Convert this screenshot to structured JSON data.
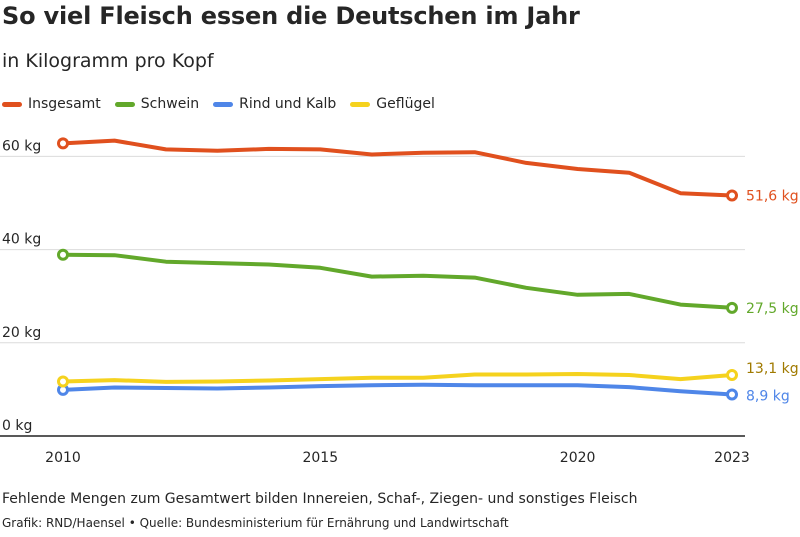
{
  "chart_data": {
    "type": "line",
    "title": "So viel Fleisch essen die Deutschen im Jahr",
    "subtitle": "in Kilogramm pro Kopf",
    "x": [
      2010,
      2011,
      2012,
      2013,
      2014,
      2015,
      2016,
      2017,
      2018,
      2019,
      2020,
      2021,
      2022,
      2023
    ],
    "x_ticks": [
      "2010",
      "2015",
      "2020",
      "2023"
    ],
    "y_ticks": [
      "0 kg",
      "20 kg",
      "40 kg",
      "60 kg"
    ],
    "ylim": [
      0,
      70
    ],
    "grid": true,
    "legend_position": "top-left",
    "series": [
      {
        "name": "Insgesamt",
        "color": "#e0501e",
        "values": [
          62.8,
          63.4,
          61.5,
          61.2,
          61.6,
          61.5,
          60.4,
          60.8,
          60.9,
          58.6,
          57.3,
          56.5,
          52.1,
          51.6
        ],
        "end_label": "51,6 kg"
      },
      {
        "name": "Schwein",
        "color": "#62a82b",
        "values": [
          38.9,
          38.8,
          37.4,
          37.1,
          36.8,
          36.1,
          34.2,
          34.4,
          34.0,
          31.8,
          30.3,
          30.5,
          28.2,
          27.5
        ],
        "end_label": "27,5 kg"
      },
      {
        "name": "Rind und Kalb",
        "color": "#4f86e8",
        "values": [
          9.9,
          10.4,
          10.3,
          10.2,
          10.4,
          10.7,
          10.9,
          11.0,
          10.9,
          10.9,
          10.9,
          10.5,
          9.6,
          8.9
        ],
        "end_label": "8,9 kg"
      },
      {
        "name": "Geflügel",
        "color": "#f5d21e",
        "values": [
          11.7,
          12.0,
          11.6,
          11.7,
          11.9,
          12.2,
          12.5,
          12.5,
          13.2,
          13.2,
          13.3,
          13.1,
          12.2,
          13.1
        ],
        "end_label": "13,1 kg"
      }
    ]
  },
  "footnote": "Fehlende Mengen zum Gesamtwert bilden Innereien, Schaf-, Ziegen- und sonstiges Fleisch",
  "credit": "Grafik: RND/Haensel • Quelle: Bundesministerium für Ernährung und Landwirtschaft",
  "colors": {
    "grid": "#dcdcdc",
    "axis": "#222222",
    "text": "#262626"
  }
}
